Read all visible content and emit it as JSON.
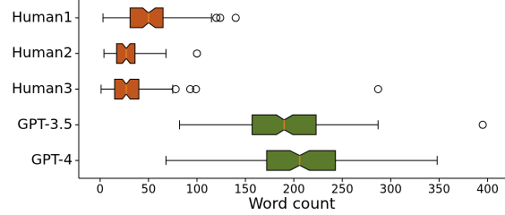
{
  "chart_data": {
    "type": "boxplot",
    "orientation": "horizontal",
    "notched": true,
    "xlabel": "Word count",
    "categories": [
      "Human1",
      "Human2",
      "Human3",
      "GPT-3.5",
      "GPT-4"
    ],
    "boxes": [
      {
        "whislo": 3,
        "q1": 31,
        "notch_lo": 44,
        "med": 50,
        "notch_hi": 57,
        "q3": 65,
        "whishi": 115,
        "fliers": [
          120,
          124,
          140
        ],
        "color": "#c0561e"
      },
      {
        "whislo": 4,
        "q1": 17,
        "notch_lo": 23,
        "med": 27,
        "notch_hi": 31,
        "q3": 36,
        "whishi": 68,
        "fliers": [
          100
        ],
        "color": "#c0561e"
      },
      {
        "whislo": 1,
        "q1": 15,
        "notch_lo": 23,
        "med": 27,
        "notch_hi": 31,
        "q3": 40,
        "whishi": 75,
        "fliers": [
          78,
          93,
          99,
          287
        ],
        "color": "#c0561e"
      },
      {
        "whislo": 82,
        "q1": 157,
        "notch_lo": 182,
        "med": 190,
        "notch_hi": 199,
        "q3": 223,
        "whishi": 287,
        "fliers": [
          395
        ],
        "color": "#5b7a2c"
      },
      {
        "whislo": 68,
        "q1": 172,
        "notch_lo": 196,
        "med": 206,
        "notch_hi": 216,
        "q3": 243,
        "whishi": 348,
        "fliers": [],
        "color": "#5b7a2c"
      }
    ],
    "median_color": "#e07b20",
    "xlim": [
      -22,
      418
    ],
    "xticks": [
      0,
      50,
      100,
      150,
      200,
      250,
      300,
      350,
      400
    ]
  }
}
